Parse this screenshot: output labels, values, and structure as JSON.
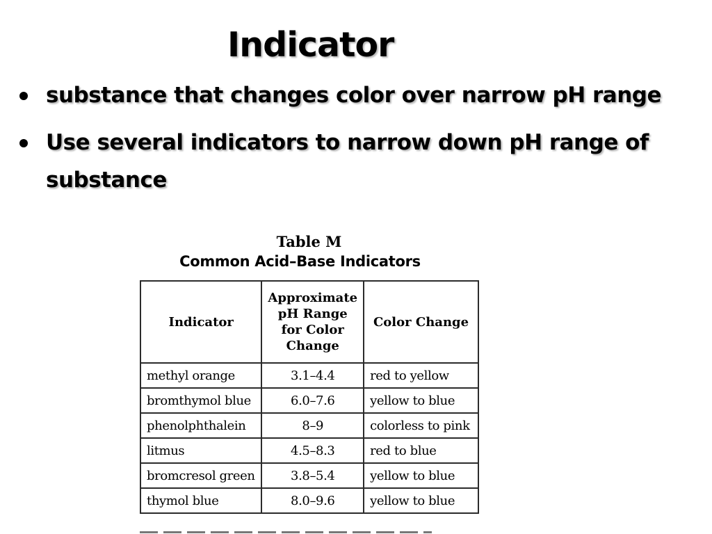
{
  "slide": {
    "title": "Indicator",
    "bullets": [
      "substance that changes color over narrow pH range",
      "Use several indicators to narrow down pH range of substance"
    ]
  },
  "table": {
    "caption_line1": "Table M",
    "caption_line2": "Common Acid–Base Indicators",
    "headers": [
      "Indicator",
      "Approximate pH Range for Color Change",
      "Color Change"
    ],
    "rows": [
      [
        "methyl orange",
        "3.1–4.4",
        "red to yellow"
      ],
      [
        "bromthymol blue",
        "6.0–7.6",
        "yellow to blue"
      ],
      [
        "phenolphthalein",
        "8–9",
        "colorless to pink"
      ],
      [
        "litmus",
        "4.5–8.3",
        "red to blue"
      ],
      [
        "bromcresol green",
        "3.8–5.4",
        "yellow to blue"
      ],
      [
        "thymol blue",
        "8.0–9.6",
        "yellow to blue"
      ]
    ]
  }
}
